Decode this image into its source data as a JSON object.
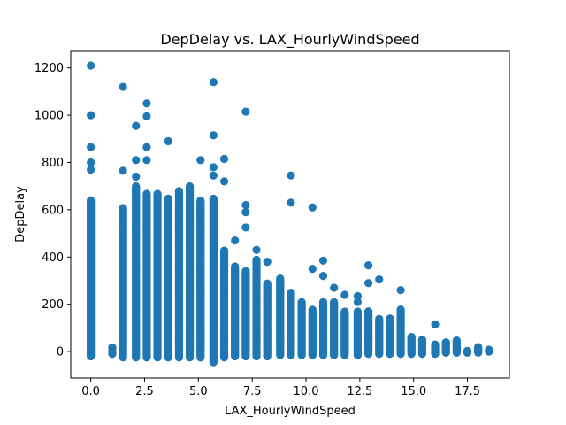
{
  "chart_data": {
    "type": "scatter",
    "title": "DepDelay vs. LAX_HourlyWindSpeed",
    "xlabel": "LAX_HourlyWindSpeed",
    "ylabel": "DepDelay",
    "xlim": [
      -0.93,
      19.45
    ],
    "ylim": [
      -112,
      1270
    ],
    "xticks": [
      0.0,
      2.5,
      5.0,
      7.5,
      10.0,
      12.5,
      15.0,
      17.5
    ],
    "xtick_labels": [
      "0.0",
      "2.5",
      "5.0",
      "7.5",
      "10.0",
      "12.5",
      "15.0",
      "17.5"
    ],
    "yticks": [
      0,
      200,
      400,
      600,
      800,
      1000,
      1200
    ],
    "ytick_labels": [
      "0",
      "200",
      "400",
      "600",
      "800",
      "1000",
      "1200"
    ],
    "grid": false,
    "marker_color": "#1f77b4",
    "columns": [
      {
        "x": 0.0,
        "min": -20,
        "max": 640,
        "outliers": [
          1210,
          1000,
          865,
          800,
          770
        ]
      },
      {
        "x": 1.0,
        "min": -10,
        "max": 20,
        "outliers": []
      },
      {
        "x": 1.5,
        "min": -25,
        "max": 610,
        "outliers": [
          1120,
          765
        ]
      },
      {
        "x": 2.1,
        "min": -25,
        "max": 700,
        "outliers": [
          955,
          810,
          740
        ]
      },
      {
        "x": 2.6,
        "min": -25,
        "max": 670,
        "outliers": [
          1050,
          995,
          865,
          810
        ]
      },
      {
        "x": 3.1,
        "min": -25,
        "max": 670,
        "outliers": []
      },
      {
        "x": 3.6,
        "min": -25,
        "max": 650,
        "outliers": [
          890
        ]
      },
      {
        "x": 4.1,
        "min": -25,
        "max": 680,
        "outliers": []
      },
      {
        "x": 4.6,
        "min": -25,
        "max": 700,
        "outliers": []
      },
      {
        "x": 5.1,
        "min": -25,
        "max": 640,
        "outliers": [
          810
        ]
      },
      {
        "x": 5.7,
        "min": -45,
        "max": 650,
        "outliers": [
          1140,
          915,
          780,
          745
        ]
      },
      {
        "x": 6.2,
        "min": -25,
        "max": 430,
        "outliers": [
          815,
          720
        ]
      },
      {
        "x": 6.7,
        "min": -20,
        "max": 360,
        "outliers": [
          470
        ]
      },
      {
        "x": 7.2,
        "min": -20,
        "max": 340,
        "outliers": [
          1015,
          620,
          590,
          525
        ]
      },
      {
        "x": 7.7,
        "min": -20,
        "max": 390,
        "outliers": [
          430
        ]
      },
      {
        "x": 8.2,
        "min": -20,
        "max": 290,
        "outliers": [
          380
        ]
      },
      {
        "x": 8.8,
        "min": -15,
        "max": 310,
        "outliers": []
      },
      {
        "x": 9.3,
        "min": -15,
        "max": 250,
        "outliers": [
          745,
          630
        ]
      },
      {
        "x": 9.8,
        "min": -15,
        "max": 210,
        "outliers": []
      },
      {
        "x": 10.3,
        "min": -15,
        "max": 180,
        "outliers": [
          610,
          350
        ]
      },
      {
        "x": 10.8,
        "min": -15,
        "max": 210,
        "outliers": [
          385,
          320
        ]
      },
      {
        "x": 11.3,
        "min": -15,
        "max": 210,
        "outliers": [
          270
        ]
      },
      {
        "x": 11.8,
        "min": -15,
        "max": 170,
        "outliers": [
          240
        ]
      },
      {
        "x": 12.4,
        "min": -15,
        "max": 170,
        "outliers": [
          235,
          210
        ]
      },
      {
        "x": 12.9,
        "min": -10,
        "max": 170,
        "outliers": [
          365,
          290
        ]
      },
      {
        "x": 13.4,
        "min": -10,
        "max": 140,
        "outliers": [
          305
        ]
      },
      {
        "x": 13.9,
        "min": -10,
        "max": 120,
        "outliers": [
          140
        ]
      },
      {
        "x": 14.4,
        "min": -10,
        "max": 180,
        "outliers": [
          260
        ]
      },
      {
        "x": 14.9,
        "min": -10,
        "max": 65,
        "outliers": []
      },
      {
        "x": 15.4,
        "min": -10,
        "max": 50,
        "outliers": []
      },
      {
        "x": 16.0,
        "min": -10,
        "max": 30,
        "outliers": [
          115
        ]
      },
      {
        "x": 16.5,
        "min": -5,
        "max": 40,
        "outliers": []
      },
      {
        "x": 17.0,
        "min": -5,
        "max": 50,
        "outliers": []
      },
      {
        "x": 17.5,
        "min": -5,
        "max": 5,
        "outliers": []
      },
      {
        "x": 18.0,
        "min": -5,
        "max": 20,
        "outliers": []
      },
      {
        "x": 18.5,
        "min": 0,
        "max": 10,
        "outliers": []
      }
    ]
  }
}
